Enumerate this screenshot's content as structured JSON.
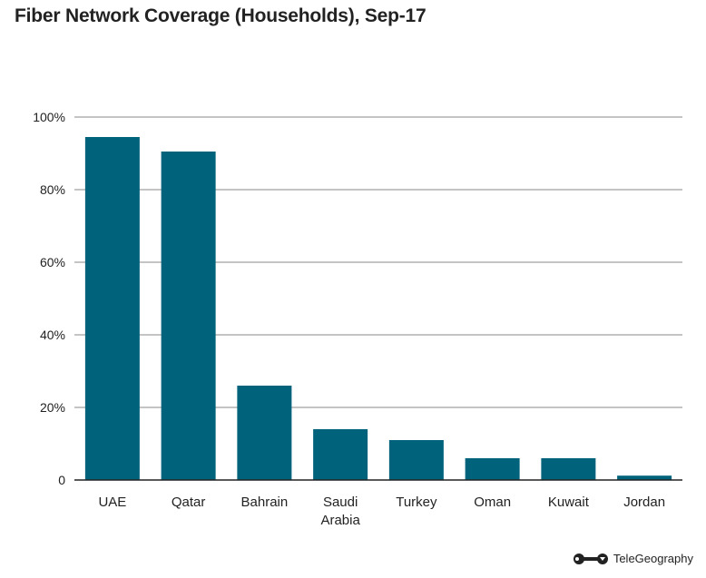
{
  "chart_data": {
    "type": "bar",
    "title": "Fiber Network Coverage (Households), Sep-17",
    "categories": [
      "UAE",
      "Qatar",
      "Bahrain",
      "Saudi\nArabia",
      "Turkey",
      "Oman",
      "Kuwait",
      "Jordan"
    ],
    "values": [
      94.5,
      90.5,
      26,
      14,
      11,
      6,
      6,
      1.2
    ],
    "ylim": [
      0,
      100
    ],
    "yticks": [
      0,
      20,
      40,
      60,
      80,
      100
    ],
    "ytick_labels": [
      "0",
      "20%",
      "40%",
      "60%",
      "80%",
      "100%"
    ],
    "xlabel": "",
    "ylabel": "",
    "grid": true,
    "legend": "none",
    "colors": {
      "bar": "#00637b",
      "grid": "#8a8a8a",
      "axis": "#222222",
      "text": "#222222"
    }
  },
  "brand": {
    "name": "TeleGeography",
    "logo_icon": "telegeography-logo-icon"
  }
}
